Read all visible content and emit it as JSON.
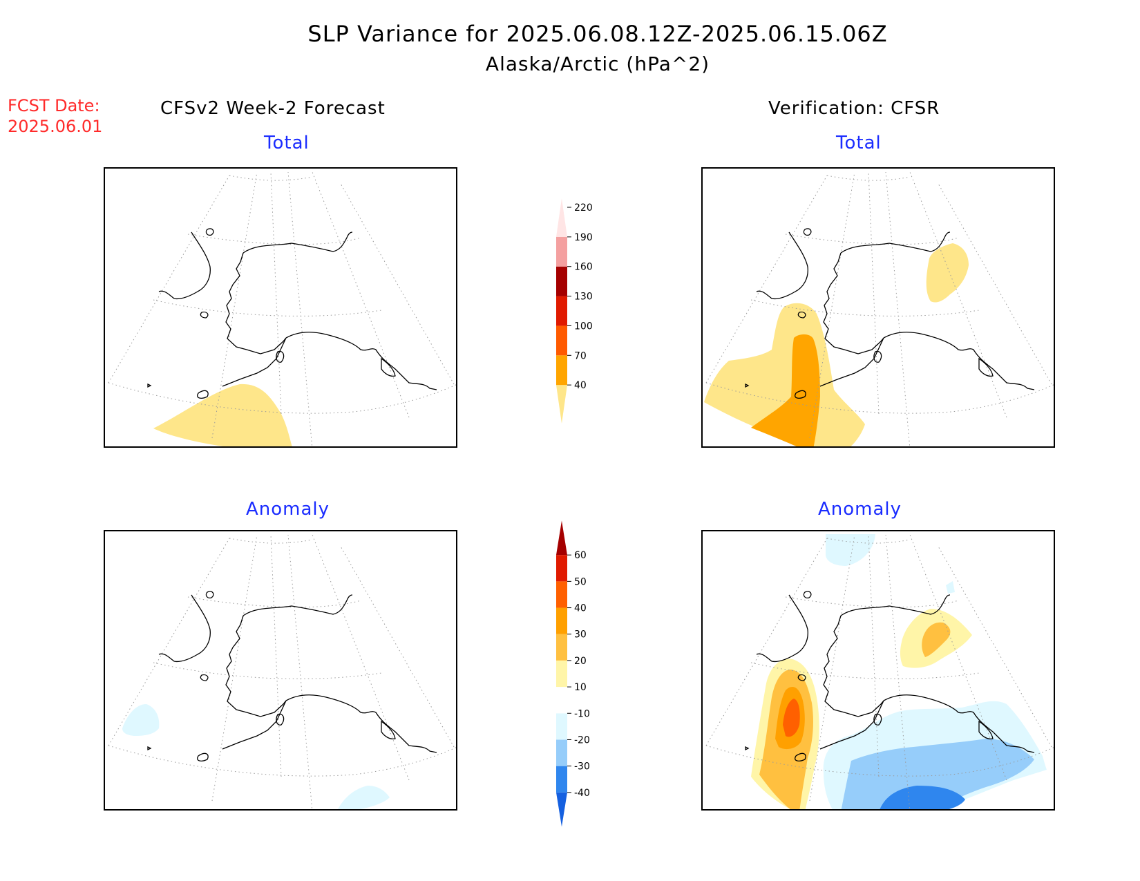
{
  "title": {
    "line1": "SLP Variance for 2025.06.08.12Z-2025.06.15.06Z",
    "line2": "Alaska/Arctic (hPa^2)"
  },
  "fcst_date": {
    "label": "FCST Date:",
    "value": "2025.06.01"
  },
  "columns": {
    "left": "CFSv2 Week-2 Forecast",
    "right": "Verification: CFSR"
  },
  "panels": {
    "forecast_total": "Total",
    "verif_total": "Total",
    "forecast_anomaly": "Anomaly",
    "verif_anomaly": "Anomaly"
  },
  "colorbar_total": {
    "levels": [
      40,
      70,
      100,
      130,
      160,
      190,
      220
    ],
    "labels": [
      "40",
      "70",
      "100",
      "130",
      "160",
      "190",
      "220"
    ],
    "colors": [
      "#fee68a",
      "#ffa500",
      "#ff5a00",
      "#e01a00",
      "#a50000",
      "#f4a0a0",
      "#ffe5e5"
    ]
  },
  "colorbar_anomaly": {
    "levels": [
      -40,
      -30,
      -20,
      -10,
      10,
      20,
      30,
      40,
      50,
      60
    ],
    "labels": [
      "-40",
      "-30",
      "-20",
      "-10",
      "10",
      "20",
      "30",
      "40",
      "50",
      "60"
    ],
    "colors": [
      "#1560e0",
      "#2f86ee",
      "#96cdfa",
      "#dff8ff",
      "#ffffff",
      "#fff5a8",
      "#ffc040",
      "#ffa000",
      "#ff6000",
      "#e01a00",
      "#a50000"
    ]
  }
}
